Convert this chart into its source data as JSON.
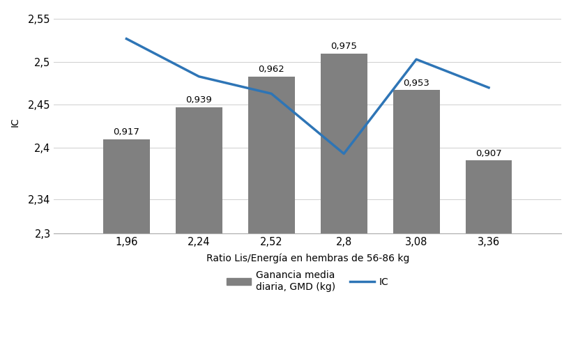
{
  "x_labels": [
    "1,96",
    "2,24",
    "2,52",
    "2,8",
    "3,08",
    "3,36"
  ],
  "x_values": [
    1.96,
    2.24,
    2.52,
    2.8,
    3.08,
    3.36
  ],
  "bar_heights": [
    2.41,
    2.447,
    2.483,
    2.51,
    2.467,
    2.385
  ],
  "bar_labels": [
    "0,917",
    "0,939",
    "0,962",
    "0,975",
    "0,953",
    "0,907"
  ],
  "line_values": [
    2.527,
    2.483,
    2.463,
    2.393,
    2.503,
    2.47
  ],
  "bar_color": "#808080",
  "line_color": "#2E75B6",
  "ylim": [
    2.3,
    2.56
  ],
  "yticks": [
    2.3,
    2.34,
    2.4,
    2.45,
    2.5,
    2.55
  ],
  "ytick_labels": [
    "2,3",
    "2,34",
    "2,4",
    "2,45",
    "2,5",
    "2,55"
  ],
  "ylabel": "IC",
  "xlabel": "Ratio Lis/Energía en hembras de 56-86 kg",
  "legend_bar_label": "Ganancia media\ndiaria, GMD (kg)",
  "legend_line_label": "IC",
  "bar_width": 0.18,
  "line_width": 2.5,
  "background_color": "#ffffff",
  "grid_color": "#d3d3d3",
  "label_fontsize": 9.5,
  "axis_fontsize": 10,
  "tick_fontsize": 10.5
}
